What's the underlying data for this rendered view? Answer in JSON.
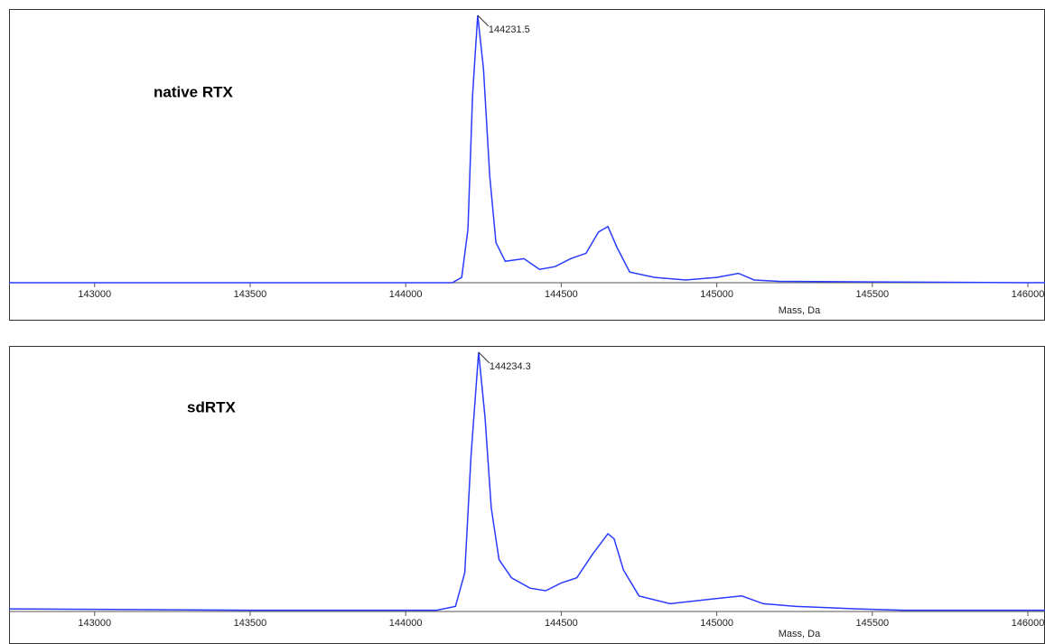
{
  "chart_data": [
    {
      "type": "line",
      "label": "native RTX",
      "xlabel": "Mass, Da",
      "color": "#2a3bff",
      "x": [
        142725,
        144150,
        144180,
        144200,
        144215,
        144231.5,
        144250,
        144270,
        144290,
        144320,
        144380,
        144430,
        144480,
        144530,
        144580,
        144620,
        144650,
        144680,
        144720,
        144800,
        144900,
        145000,
        145070,
        145120,
        145200,
        145500,
        146055
      ],
      "values": [
        0,
        0,
        2,
        20,
        70,
        100,
        80,
        40,
        15,
        8,
        9,
        5,
        6,
        9,
        11,
        19,
        21,
        13,
        4,
        2,
        1,
        2,
        3.5,
        1,
        0.5,
        0.3,
        0
      ],
      "xlim": [
        142725,
        146055
      ],
      "ylim": [
        0,
        100
      ],
      "xticks": [
        143000,
        143500,
        144000,
        144500,
        145000,
        145500,
        146000
      ],
      "annotations": [
        {
          "x": 144231.5,
          "text": "144231.5"
        }
      ]
    },
    {
      "type": "line",
      "label": "sdRTX",
      "xlabel": "Mass, Da",
      "color": "#2a3bff",
      "x": [
        142725,
        143500,
        144100,
        144160,
        144190,
        144210,
        144234.3,
        144255,
        144275,
        144300,
        144340,
        144400,
        144450,
        144500,
        144550,
        144600,
        144650,
        144670,
        144700,
        144750,
        144850,
        145000,
        145080,
        145150,
        145250,
        145450,
        145600,
        146055
      ],
      "values": [
        1,
        0.5,
        0.5,
        2,
        15,
        60,
        100,
        75,
        40,
        20,
        13,
        9,
        8,
        11,
        13,
        22,
        30,
        28,
        16,
        6,
        3,
        5,
        6,
        3,
        2,
        1,
        0.5,
        0.5
      ],
      "xlim": [
        142725,
        146055
      ],
      "ylim": [
        0,
        100
      ],
      "xticks": [
        143000,
        143500,
        144000,
        144500,
        145000,
        145500,
        146000
      ],
      "annotations": [
        {
          "x": 144234.3,
          "text": "144234.3"
        }
      ]
    }
  ]
}
